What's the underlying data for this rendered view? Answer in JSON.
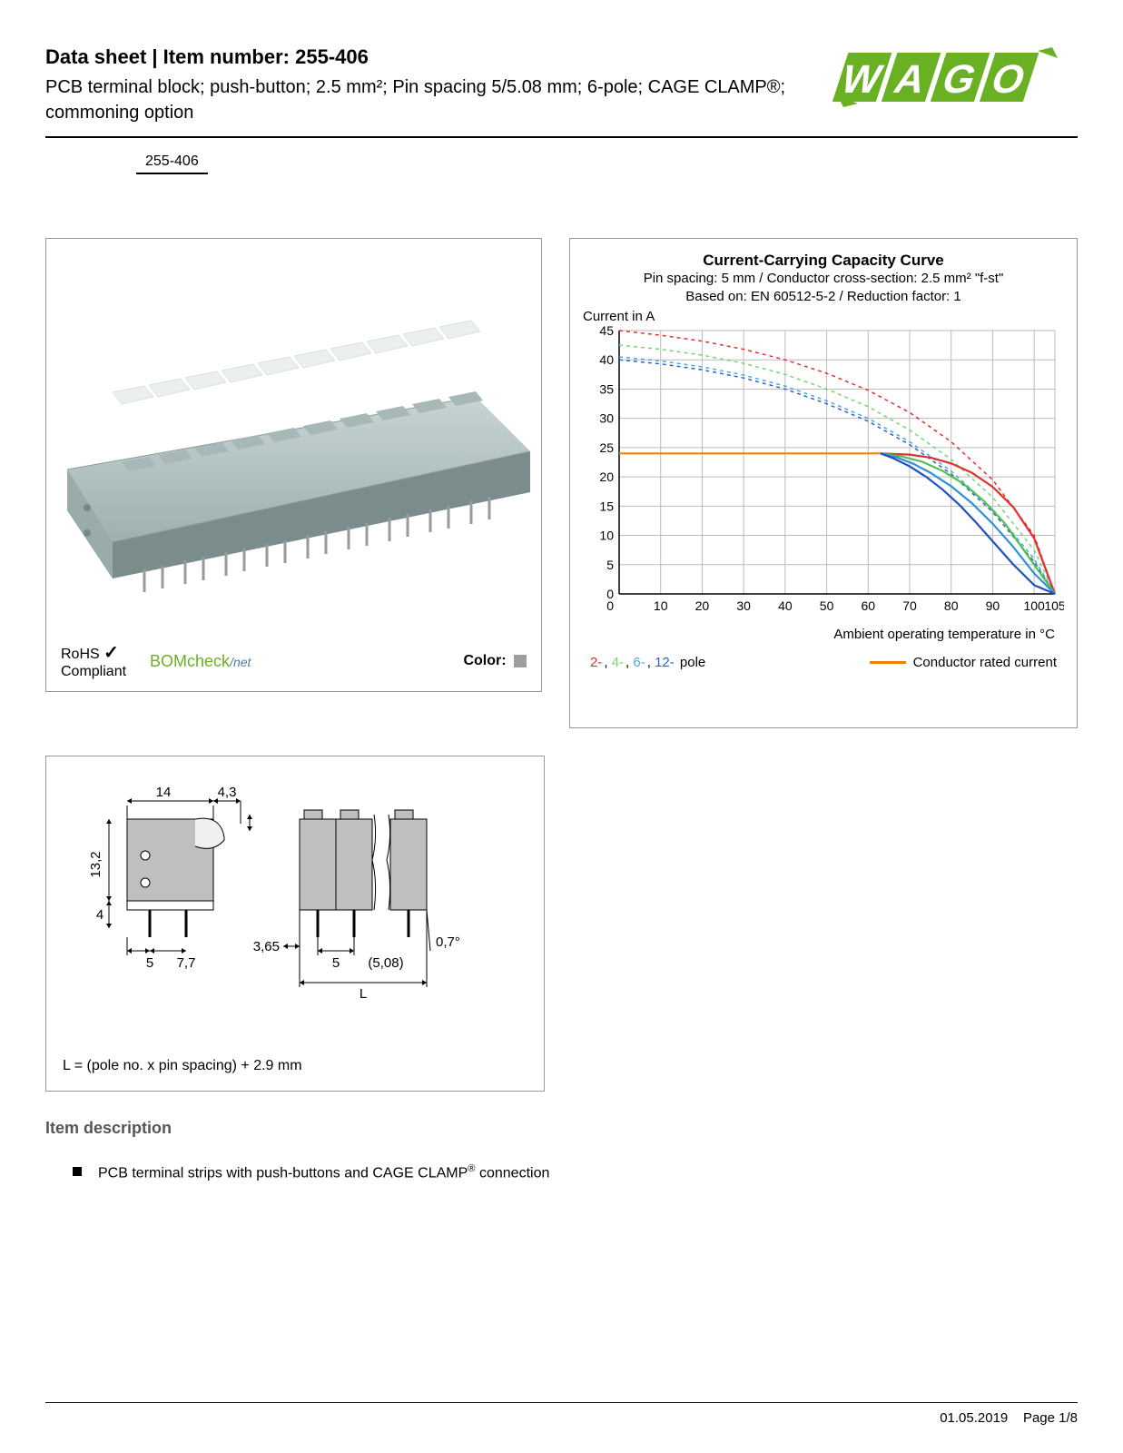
{
  "header": {
    "title": "Data sheet  |  Item number: 255-406",
    "subtitle": "PCB terminal block; push-button; 2.5 mm²; Pin spacing 5/5.08 mm; 6-pole; CAGE CLAMP®; commoning option",
    "part_badge": "255-406",
    "logo_text": "WAGO",
    "logo_color": "#6ab023"
  },
  "product_panel": {
    "rohs_line1": "RoHS",
    "rohs_line2": "Compliant",
    "bomcheck_main": "BOMcheck",
    "bomcheck_suffix": "net",
    "color_label": "Color:",
    "color_swatch": "#9e9e9e",
    "block_color": "#b8c8c8",
    "button_color": "#e6eaea"
  },
  "chart": {
    "title": "Current-Carrying Capacity Curve",
    "sub1": "Pin spacing: 5 mm / Conductor cross-section: 2.5 mm² \"f-st\"",
    "sub2": "Based on: EN 60512-5-2 / Reduction factor: 1",
    "y_axis_label": "Current in A",
    "x_axis_label": "Ambient operating temperature in °C",
    "y_ticks": [
      0,
      5,
      10,
      15,
      20,
      25,
      30,
      35,
      40,
      45
    ],
    "x_ticks": [
      0,
      10,
      20,
      30,
      40,
      50,
      60,
      70,
      80,
      90,
      100,
      105
    ],
    "x_max": 105,
    "y_max": 45,
    "grid_color": "#bbbbbb",
    "axis_color": "#000000",
    "series": [
      {
        "name": "2-pole",
        "color": "#e03030",
        "dash": "4,4",
        "width": 1.5,
        "points": [
          [
            0,
            45
          ],
          [
            10,
            44.2
          ],
          [
            20,
            43.2
          ],
          [
            30,
            41.8
          ],
          [
            40,
            40
          ],
          [
            50,
            37.7
          ],
          [
            60,
            34.8
          ],
          [
            70,
            31
          ],
          [
            80,
            26
          ],
          [
            90,
            19.5
          ],
          [
            100,
            10
          ],
          [
            105,
            0
          ]
        ]
      },
      {
        "name": "4-pole",
        "color": "#70d870",
        "dash": "4,4",
        "width": 1.5,
        "points": [
          [
            0,
            42.5
          ],
          [
            10,
            41.8
          ],
          [
            20,
            40.8
          ],
          [
            30,
            39.4
          ],
          [
            40,
            37.5
          ],
          [
            50,
            35
          ],
          [
            60,
            32
          ],
          [
            70,
            28
          ],
          [
            80,
            23
          ],
          [
            90,
            16.5
          ],
          [
            100,
            7.5
          ],
          [
            105,
            0
          ]
        ]
      },
      {
        "name": "6-pole",
        "color": "#4aa8e0",
        "dash": "4,4",
        "width": 1.5,
        "points": [
          [
            0,
            40.5
          ],
          [
            10,
            39.8
          ],
          [
            20,
            38.8
          ],
          [
            30,
            37.4
          ],
          [
            40,
            35.5
          ],
          [
            50,
            33
          ],
          [
            60,
            30
          ],
          [
            70,
            26
          ],
          [
            80,
            21
          ],
          [
            90,
            14.5
          ],
          [
            100,
            6
          ],
          [
            105,
            0
          ]
        ]
      },
      {
        "name": "12-pole",
        "color": "#3060d0",
        "dash": "4,4",
        "width": 1.5,
        "points": [
          [
            0,
            40
          ],
          [
            10,
            39.3
          ],
          [
            20,
            38.3
          ],
          [
            30,
            36.9
          ],
          [
            40,
            35
          ],
          [
            50,
            32.5
          ],
          [
            60,
            29.5
          ],
          [
            70,
            25.5
          ],
          [
            80,
            20.5
          ],
          [
            90,
            14
          ],
          [
            100,
            5.5
          ],
          [
            105,
            0
          ]
        ]
      },
      {
        "name": "2-pole-solid",
        "color": "#e03030",
        "dash": "",
        "width": 2.2,
        "points": [
          [
            63,
            24
          ],
          [
            70,
            23.8
          ],
          [
            75,
            23.3
          ],
          [
            80,
            22.3
          ],
          [
            85,
            20.7
          ],
          [
            90,
            18.3
          ],
          [
            95,
            14.8
          ],
          [
            100,
            9.5
          ],
          [
            105,
            0
          ]
        ]
      },
      {
        "name": "4-pole-solid",
        "color": "#50c050",
        "dash": "",
        "width": 2.2,
        "points": [
          [
            63,
            24
          ],
          [
            68,
            23.5
          ],
          [
            73,
            22.6
          ],
          [
            78,
            21
          ],
          [
            83,
            18.8
          ],
          [
            88,
            15.8
          ],
          [
            93,
            12
          ],
          [
            98,
            7
          ],
          [
            105,
            0
          ]
        ]
      },
      {
        "name": "6-pole-solid",
        "color": "#3090d8",
        "dash": "",
        "width": 2.2,
        "points": [
          [
            63,
            24
          ],
          [
            67,
            23.3
          ],
          [
            71,
            22.2
          ],
          [
            75,
            20.7
          ],
          [
            80,
            18.4
          ],
          [
            85,
            15.5
          ],
          [
            90,
            12
          ],
          [
            95,
            8
          ],
          [
            100,
            3.5
          ],
          [
            105,
            0
          ]
        ]
      },
      {
        "name": "12-pole-solid",
        "color": "#2050c0",
        "dash": "",
        "width": 2.2,
        "points": [
          [
            63,
            24
          ],
          [
            66,
            23.2
          ],
          [
            70,
            21.8
          ],
          [
            74,
            20
          ],
          [
            78,
            17.8
          ],
          [
            82,
            15.2
          ],
          [
            86,
            12.2
          ],
          [
            90,
            9
          ],
          [
            95,
            5
          ],
          [
            100,
            1.5
          ],
          [
            105,
            0
          ]
        ]
      },
      {
        "name": "rated",
        "color": "#f08000",
        "dash": "",
        "width": 2.2,
        "points": [
          [
            0,
            24
          ],
          [
            63,
            24
          ]
        ]
      }
    ],
    "legend_poles": [
      {
        "label": "2-",
        "color": "#e03030"
      },
      {
        "label": "4-",
        "color": "#70d870"
      },
      {
        "label": "6-",
        "color": "#4aa8e0"
      },
      {
        "label": "12-",
        "color": "#3060d0"
      }
    ],
    "legend_poles_suffix": " pole",
    "legend_conductor": "Conductor rated current",
    "legend_conductor_color": "#f08000"
  },
  "dimensions": {
    "formula": "L = (pole no. x pin spacing) + 2.9 mm",
    "values": {
      "width_top": "14",
      "width_right": "4,3",
      "height_left": "13,2",
      "height_bottom": "4",
      "pin_left": "5",
      "pin_right": "7,7",
      "offset": "3,65",
      "spacing": "5",
      "alt_spacing": "(5,08)",
      "angle": "0,7°",
      "length": "L"
    },
    "block_color": "#bfbfbf",
    "line_color": "#000000"
  },
  "description": {
    "section_title": "Item description",
    "bullets": [
      "PCB terminal strips with push-buttons and CAGE CLAMP® connection"
    ]
  },
  "footer": {
    "date": "01.05.2019",
    "page": "Page 1/8"
  }
}
